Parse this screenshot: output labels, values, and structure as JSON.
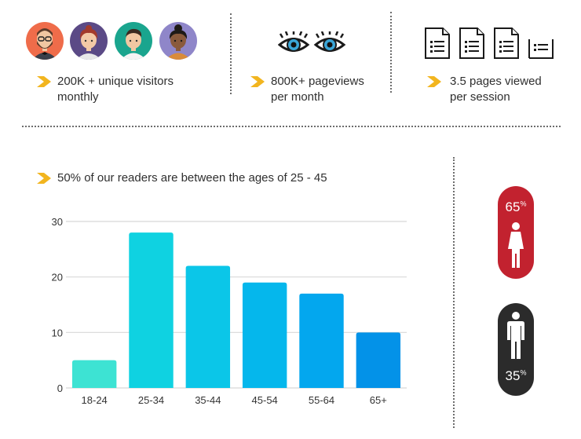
{
  "stats": [
    {
      "line1": "200K + unique visitors",
      "line2": "monthly",
      "icon": "people-avatars"
    },
    {
      "line1": "800K+ pageviews",
      "line2": "per month",
      "icon": "eyes"
    },
    {
      "line1": "3.5 pages viewed",
      "line2": "per session",
      "icon": "document-pages"
    }
  ],
  "chart_heading": "50% of our readers are between the ages of 25 - 45",
  "gender": {
    "female": {
      "value": "65",
      "unit": "%",
      "color": "#c2222f",
      "icon": "female-icon"
    },
    "male": {
      "value": "35",
      "unit": "%",
      "color": "#2b2b2b",
      "icon": "male-icon"
    }
  },
  "colors": {
    "accent_arrow": "#f2b51f",
    "grid": "#d8d8d8"
  },
  "chart_data": {
    "type": "bar",
    "categories": [
      "18-24",
      "25-34",
      "35-44",
      "45-54",
      "55-64",
      "65+"
    ],
    "values": [
      5,
      28,
      22,
      19,
      17,
      10
    ],
    "yticks": [
      0,
      10,
      20,
      30
    ],
    "ylim": [
      0,
      30
    ],
    "bar_colors": [
      "#3de3d3",
      "#0fd2e1",
      "#0bc6e8",
      "#05b7ec",
      "#03a7ee",
      "#0392e8"
    ],
    "grid": true,
    "title": "",
    "xlabel": "",
    "ylabel": ""
  }
}
